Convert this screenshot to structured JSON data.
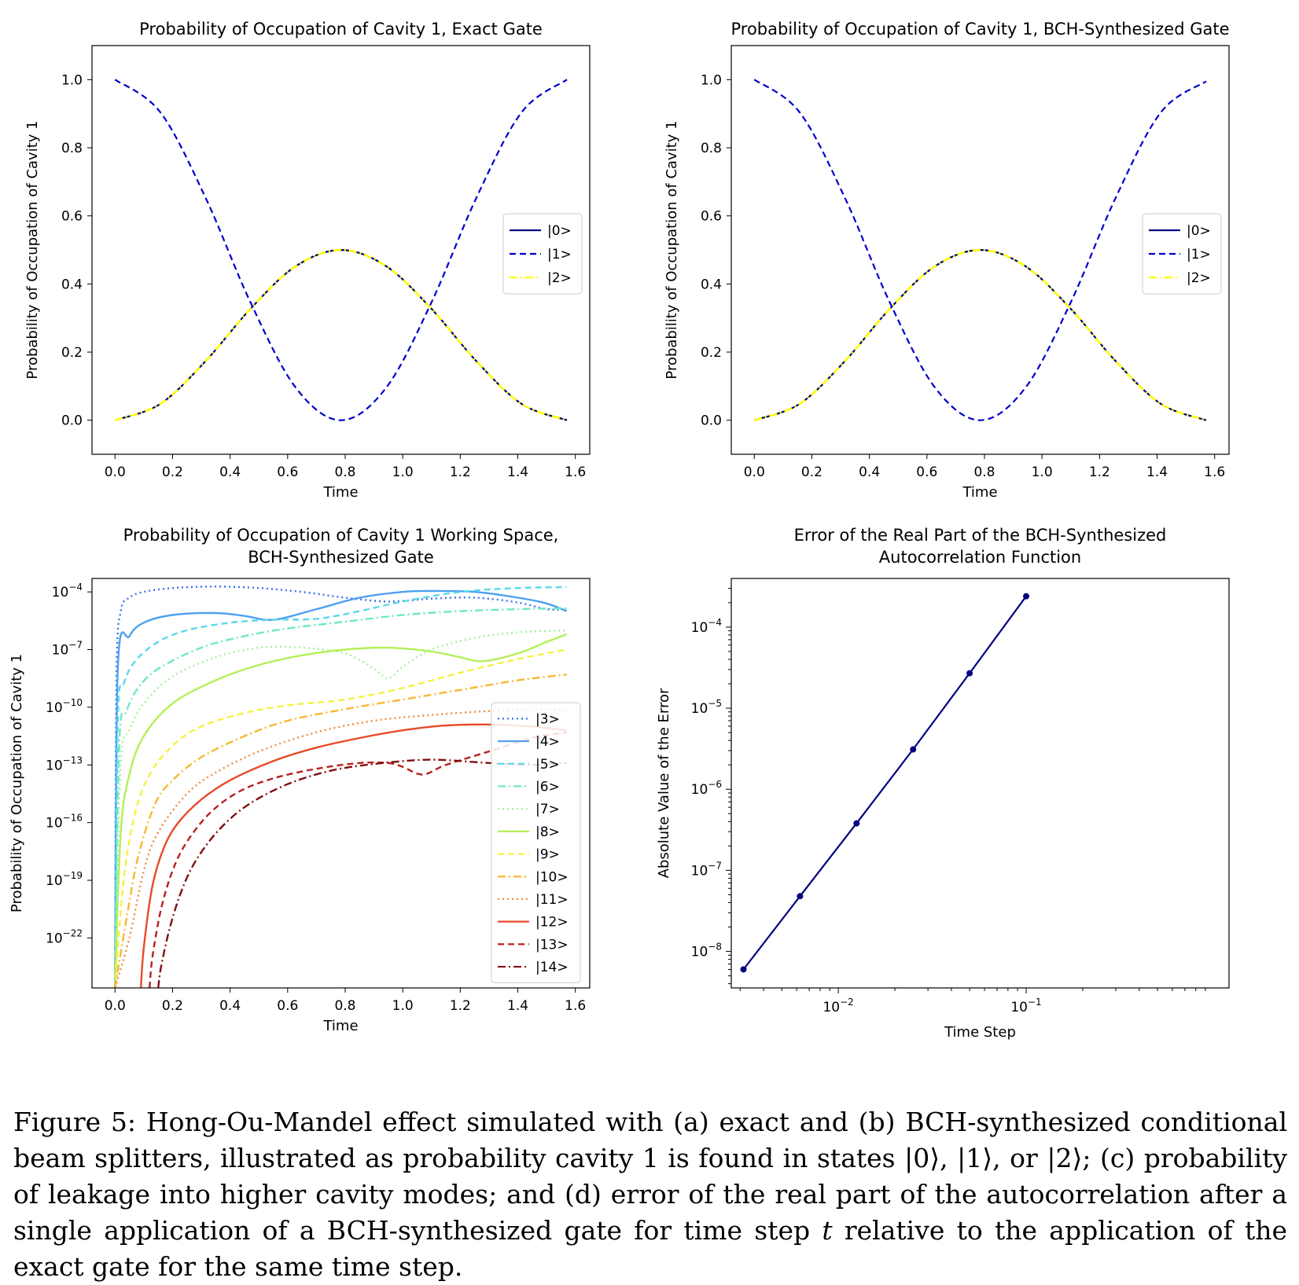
{
  "figure": {
    "caption_parts": [
      "Figure 5: Hong-Ou-Mandel effect simulated with (a) exact and (b) BCH-synthesized conditional beam splitters, illustrated as probability cavity 1 is found in states |0⟩, |1⟩, or |2⟩; (c) probability of leakage into higher cavity modes; and (d) error of the real part of the autocorrelation after a single application of a BCH-synthesized gate for time step ",
      "t",
      " relative to the application of the exact gate for the same time step."
    ]
  },
  "chart_data": [
    {
      "type": "line",
      "title": "Probability of Occupation of Cavity 1, Exact Gate",
      "xlabel": "Time",
      "ylabel": "Probability of Occupation of Cavity 1",
      "xlim": [
        -0.08,
        1.65
      ],
      "ylim": [
        -0.1,
        1.1
      ],
      "xticks": [
        "0.0",
        "0.2",
        "0.4",
        "0.6",
        "0.8",
        "1.0",
        "1.2",
        "1.4",
        "1.6"
      ],
      "yticks": [
        "0.0",
        "0.2",
        "0.4",
        "0.6",
        "0.8",
        "1.0"
      ],
      "legend_position": "center-right",
      "x": [
        0,
        0.1571,
        0.3142,
        0.4712,
        0.6283,
        0.7854,
        0.9425,
        1.0996,
        1.2566,
        1.4137,
        1.5708
      ],
      "series": [
        {
          "name": "|0>",
          "color": "#000080",
          "style": "solid",
          "values": [
            0,
            0.0477,
            0.1727,
            0.3273,
            0.4523,
            0.5,
            0.4523,
            0.3273,
            0.1727,
            0.0477,
            0
          ]
        },
        {
          "name": "|1>",
          "color": "#0000cd",
          "style": "dashed",
          "values": [
            1,
            0.9045,
            0.6545,
            0.3455,
            0.0955,
            0,
            0.0955,
            0.3455,
            0.6545,
            0.9045,
            1
          ]
        },
        {
          "name": "|2>",
          "color": "#ffff00",
          "style": "dashdot",
          "values": [
            0,
            0.0477,
            0.1727,
            0.3273,
            0.4523,
            0.5,
            0.4523,
            0.3273,
            0.1727,
            0.0477,
            0
          ]
        }
      ]
    },
    {
      "type": "line",
      "title": "Probability of Occupation of Cavity 1, BCH-Synthesized Gate",
      "xlabel": "Time",
      "ylabel": "Probability of Occupation of Cavity 1",
      "xlim": [
        -0.08,
        1.65
      ],
      "ylim": [
        -0.1,
        1.1
      ],
      "xticks": [
        "0.0",
        "0.2",
        "0.4",
        "0.6",
        "0.8",
        "1.0",
        "1.2",
        "1.4",
        "1.6"
      ],
      "yticks": [
        "0.0",
        "0.2",
        "0.4",
        "0.6",
        "0.8",
        "1.0"
      ],
      "legend_position": "center-right",
      "x": [
        0,
        0.1571,
        0.3142,
        0.4712,
        0.6283,
        0.7854,
        0.9425,
        1.0996,
        1.2566,
        1.4137,
        1.5708
      ],
      "series": [
        {
          "name": "|0>",
          "color": "#000080",
          "style": "solid",
          "values": [
            0,
            0.0477,
            0.1727,
            0.3273,
            0.4523,
            0.5,
            0.4523,
            0.3273,
            0.1727,
            0.0477,
            0
          ]
        },
        {
          "name": "|1>",
          "color": "#0000cd",
          "style": "dashed",
          "values": [
            1,
            0.9045,
            0.6545,
            0.3455,
            0.0955,
            0,
            0.0955,
            0.3455,
            0.6545,
            0.9045,
            0.995
          ]
        },
        {
          "name": "|2>",
          "color": "#ffff00",
          "style": "dashdot",
          "values": [
            0,
            0.0477,
            0.1727,
            0.3273,
            0.4523,
            0.5,
            0.4523,
            0.3273,
            0.1727,
            0.0477,
            0
          ]
        }
      ]
    },
    {
      "type": "line",
      "title": "Probability of Occupation of Cavity 1 Working Space,",
      "subtitle": "BCH-Synthesized Gate",
      "xlabel": "Time",
      "ylabel": "Probability of Occupation of Cavity 1",
      "xlim": [
        -0.08,
        1.65
      ],
      "ylim_log10": [
        -24.6,
        -3.3
      ],
      "xticks": [
        "0.0",
        "0.2",
        "0.4",
        "0.6",
        "0.8",
        "1.0",
        "1.2",
        "1.4",
        "1.6"
      ],
      "yticks": [
        {
          "base": "10",
          "exp": "−4"
        },
        {
          "base": "10",
          "exp": "−7"
        },
        {
          "base": "10",
          "exp": "−10"
        },
        {
          "base": "10",
          "exp": "−13"
        },
        {
          "base": "10",
          "exp": "−16"
        },
        {
          "base": "10",
          "exp": "−19"
        },
        {
          "base": "10",
          "exp": "−22"
        }
      ],
      "yscale": "log",
      "legend_position": "right",
      "series": [
        {
          "name": "|3>",
          "color": "#3a6ff0",
          "style": "dotted",
          "x": [
            0.0,
            0.005,
            0.02,
            0.05,
            0.1,
            0.2,
            0.35,
            0.5,
            0.65,
            0.8,
            0.95,
            1.1,
            1.25,
            1.4,
            1.5,
            1.57
          ],
          "log10": [
            -24.6,
            -8.5,
            -5.0,
            -4.3,
            -4.0,
            -3.8,
            -3.72,
            -3.8,
            -4.0,
            -4.3,
            -4.5,
            -4.35,
            -4.3,
            -4.55,
            -4.9,
            -4.9
          ]
        },
        {
          "name": "|4>",
          "color": "#4ea0f0",
          "style": "solid",
          "x": [
            0.0,
            0.01,
            0.05,
            0.1,
            0.2,
            0.35,
            0.45,
            0.55,
            0.7,
            0.85,
            1.0,
            1.1,
            1.25,
            1.4,
            1.5,
            1.57
          ],
          "log10": [
            -24.6,
            -7.9,
            -6.3,
            -5.6,
            -5.2,
            -5.1,
            -5.25,
            -5.45,
            -4.9,
            -4.3,
            -4.0,
            -3.95,
            -4.0,
            -4.3,
            -4.6,
            -5.0
          ]
        },
        {
          "name": "|5>",
          "color": "#5ad8ec",
          "style": "dashed",
          "x": [
            0.0,
            0.01,
            0.03,
            0.07,
            0.15,
            0.25,
            0.4,
            0.55,
            0.7,
            0.85,
            1.0,
            1.2,
            1.4,
            1.57
          ],
          "log10": [
            -24.6,
            -10.6,
            -8.8,
            -7.6,
            -6.6,
            -6.0,
            -5.6,
            -5.45,
            -5.4,
            -5.0,
            -4.5,
            -4.0,
            -3.8,
            -3.75
          ]
        },
        {
          "name": "|6>",
          "color": "#6ee8c4",
          "style": "dashdot",
          "x": [
            0.0,
            0.015,
            0.04,
            0.08,
            0.15,
            0.3,
            0.45,
            0.6,
            0.8,
            1.0,
            1.2,
            1.4,
            1.57
          ],
          "log10": [
            -24.6,
            -11.8,
            -10.2,
            -9.0,
            -8.0,
            -6.9,
            -6.3,
            -5.9,
            -5.55,
            -5.2,
            -5.0,
            -4.9,
            -4.85
          ]
        },
        {
          "name": "|7>",
          "color": "#a6f0a0",
          "style": "dotted",
          "x": [
            0.0,
            0.02,
            0.05,
            0.1,
            0.2,
            0.35,
            0.5,
            0.65,
            0.8,
            0.9,
            0.95,
            1.0,
            1.1,
            1.25,
            1.4,
            1.57
          ],
          "log10": [
            -24.6,
            -13.0,
            -11.2,
            -9.8,
            -8.4,
            -7.4,
            -6.9,
            -6.9,
            -7.2,
            -8.0,
            -8.5,
            -7.9,
            -7.0,
            -6.4,
            -6.1,
            -6.0
          ]
        },
        {
          "name": "|8>",
          "color": "#b4f056",
          "style": "solid",
          "x": [
            0.0,
            0.02,
            0.05,
            0.1,
            0.2,
            0.35,
            0.5,
            0.65,
            0.8,
            0.95,
            1.1,
            1.2,
            1.28,
            1.4,
            1.5,
            1.57
          ],
          "log10": [
            -24.6,
            -16.5,
            -13.5,
            -11.5,
            -9.8,
            -8.6,
            -7.8,
            -7.3,
            -7.0,
            -6.9,
            -7.1,
            -7.4,
            -7.6,
            -7.2,
            -6.6,
            -6.2
          ]
        },
        {
          "name": "|9>",
          "color": "#f4f23e",
          "style": "dashed",
          "x": [
            0.0,
            0.03,
            0.07,
            0.12,
            0.2,
            0.3,
            0.45,
            0.6,
            0.8,
            1.0,
            1.2,
            1.4,
            1.57
          ],
          "log10": [
            -24.6,
            -19.0,
            -15.5,
            -13.5,
            -12.0,
            -11.0,
            -10.3,
            -9.9,
            -9.6,
            -9.0,
            -8.2,
            -7.5,
            -7.0
          ]
        },
        {
          "name": "|10>",
          "color": "#f6b830",
          "style": "dashdot",
          "x": [
            0.0,
            0.04,
            0.08,
            0.14,
            0.2,
            0.3,
            0.45,
            0.6,
            0.8,
            1.0,
            1.2,
            1.4,
            1.57
          ],
          "log10": [
            -24.6,
            -21.0,
            -17.8,
            -15.0,
            -13.8,
            -12.6,
            -11.5,
            -10.7,
            -10.1,
            -9.6,
            -9.1,
            -8.6,
            -8.3
          ]
        },
        {
          "name": "|11>",
          "color": "#f08a38",
          "style": "dotted",
          "x": [
            0.0,
            0.05,
            0.1,
            0.15,
            0.25,
            0.35,
            0.5,
            0.7,
            0.9,
            1.1,
            1.3,
            1.5,
            1.57
          ],
          "log10": [
            -24.6,
            -22.0,
            -18.5,
            -16.5,
            -14.5,
            -13.4,
            -12.3,
            -11.3,
            -10.7,
            -10.4,
            -10.2,
            -10.1,
            -10.2
          ]
        },
        {
          "name": "|12>",
          "color": "#e84a28",
          "style": "solid",
          "x": [
            0.09,
            0.1,
            0.13,
            0.17,
            0.22,
            0.3,
            0.4,
            0.55,
            0.7,
            0.85,
            1.0,
            1.15,
            1.3,
            1.45,
            1.57
          ],
          "log10": [
            -24.6,
            -22.5,
            -19.3,
            -17.3,
            -16.0,
            -14.8,
            -13.8,
            -12.8,
            -12.1,
            -11.6,
            -11.2,
            -10.95,
            -10.9,
            -11.0,
            -11.2
          ]
        },
        {
          "name": "|13>",
          "color": "#b82020",
          "style": "dashed",
          "x": [
            0.12,
            0.13,
            0.16,
            0.2,
            0.25,
            0.33,
            0.43,
            0.55,
            0.7,
            0.85,
            0.95,
            1.0,
            1.07,
            1.15,
            1.3,
            1.45,
            1.57
          ],
          "log10": [
            -24.6,
            -23.0,
            -20.5,
            -18.5,
            -17.0,
            -15.5,
            -14.4,
            -13.7,
            -13.2,
            -12.9,
            -12.9,
            -13.1,
            -13.5,
            -13.0,
            -12.3,
            -11.6,
            -11.3
          ]
        },
        {
          "name": "|14>",
          "color": "#801010",
          "style": "dashdot",
          "x": [
            0.15,
            0.16,
            0.19,
            0.23,
            0.28,
            0.36,
            0.46,
            0.6,
            0.75,
            0.9,
            1.05,
            1.15,
            1.3,
            1.45,
            1.57
          ],
          "log10": [
            -24.6,
            -23.5,
            -21.5,
            -19.6,
            -18.0,
            -16.4,
            -15.1,
            -14.0,
            -13.3,
            -12.95,
            -12.75,
            -12.75,
            -12.9,
            -13.0,
            -12.9
          ]
        }
      ]
    },
    {
      "type": "line",
      "title": "Error of the Real Part of the BCH-Synthesized",
      "subtitle": "Autocorrelation Function",
      "xlabel": "Time Step",
      "ylabel": "Absolute Value of the Error",
      "xscale": "log",
      "yscale": "log",
      "xlim_log10": [
        -2.57,
        0.08
      ],
      "ylim_log10": [
        -8.45,
        -3.4
      ],
      "xticks": [
        {
          "base": "10",
          "exp": "−2",
          "log10": -2
        },
        {
          "base": "10",
          "exp": "−1",
          "log10": -1
        }
      ],
      "yticks": [
        {
          "base": "10",
          "exp": "−4",
          "log10": -4
        },
        {
          "base": "10",
          "exp": "−5",
          "log10": -5
        },
        {
          "base": "10",
          "exp": "−6",
          "log10": -6
        },
        {
          "base": "10",
          "exp": "−7",
          "log10": -7
        },
        {
          "base": "10",
          "exp": "−8",
          "log10": -8
        }
      ],
      "color": "#000080",
      "x": [
        0.003125,
        0.00625,
        0.0125,
        0.025,
        0.05,
        0.1
      ],
      "values": [
        6e-09,
        4.8e-08,
        3.8e-07,
        3.1e-06,
        2.7e-05,
        0.00024
      ]
    }
  ]
}
